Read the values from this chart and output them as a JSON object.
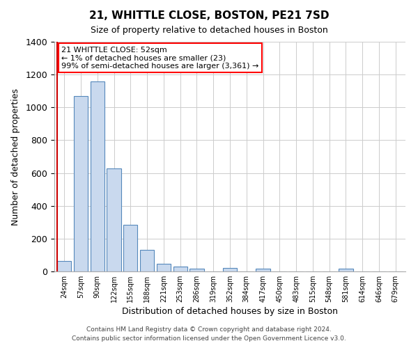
{
  "title": "21, WHITTLE CLOSE, BOSTON, PE21 7SD",
  "subtitle": "Size of property relative to detached houses in Boston",
  "xlabel": "Distribution of detached houses by size in Boston",
  "ylabel": "Number of detached properties",
  "bar_labels": [
    "24sqm",
    "57sqm",
    "90sqm",
    "122sqm",
    "155sqm",
    "188sqm",
    "221sqm",
    "253sqm",
    "286sqm",
    "319sqm",
    "352sqm",
    "384sqm",
    "417sqm",
    "450sqm",
    "483sqm",
    "515sqm",
    "548sqm",
    "581sqm",
    "614sqm",
    "646sqm",
    "679sqm"
  ],
  "bar_values": [
    65,
    1070,
    1160,
    630,
    285,
    130,
    45,
    30,
    15,
    0,
    20,
    0,
    15,
    0,
    0,
    0,
    0,
    15,
    0,
    0,
    0
  ],
  "bar_color": "#c9d9ee",
  "bar_edge_color": "#5588bb",
  "ylim": [
    0,
    1400
  ],
  "yticks": [
    0,
    200,
    400,
    600,
    800,
    1000,
    1200,
    1400
  ],
  "vline_color": "#cc0000",
  "annotation_lines": [
    "21 WHITTLE CLOSE: 52sqm",
    "← 1% of detached houses are smaller (23)",
    "99% of semi-detached houses are larger (3,361) →"
  ],
  "footer_line1": "Contains HM Land Registry data © Crown copyright and database right 2024.",
  "footer_line2": "Contains public sector information licensed under the Open Government Licence v3.0.",
  "background_color": "#ffffff",
  "grid_color": "#cccccc"
}
